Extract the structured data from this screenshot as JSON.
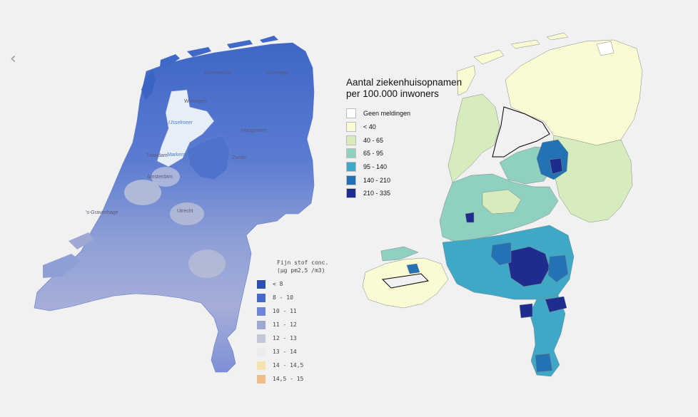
{
  "nav": {
    "back_icon": "chevron-left-icon",
    "back_glyph": "‹"
  },
  "left_map": {
    "place_labels": [
      "Groningen",
      "Leeuwarden",
      "Wieringen",
      "IJsselmeer",
      "Markermeer",
      "Hoogeveen",
      "Zwolle",
      "Zaandam",
      "Amsterdam",
      "'s-Gravenhage",
      "Utrecht"
    ],
    "legend": {
      "title_line1": "Fijn stof conc.",
      "title_line2": "(µg pm2,5 /m3)",
      "items": [
        {
          "label": "< 8",
          "color": "#2c4fb0"
        },
        {
          "label": "8 - 10",
          "color": "#4468cc"
        },
        {
          "label": "10 - 11",
          "color": "#6f86d6"
        },
        {
          "label": "11 - 12",
          "color": "#9ea8d2"
        },
        {
          "label": "12 - 13",
          "color": "#c3c6d4"
        },
        {
          "label": "13 - 14",
          "color": "#ececea"
        },
        {
          "label": "14 - 14,5",
          "color": "#f4e3ae"
        },
        {
          "label": "14,5 - 15",
          "color": "#efbe87"
        }
      ]
    }
  },
  "right_map": {
    "legend": {
      "title_line1": "Aantal ziekenhuisopnamen",
      "title_line2": "per 100.000 inwoners",
      "items": [
        {
          "label": "Geen meldingen",
          "color": "#ffffff"
        },
        {
          "label": "< 40",
          "color": "#fbfbd3"
        },
        {
          "label": "40 - 65",
          "color": "#d7ecbd"
        },
        {
          "label": "65 - 95",
          "color": "#8fd0c1"
        },
        {
          "label": "95 - 140",
          "color": "#3fa8c6"
        },
        {
          "label": "140 - 210",
          "color": "#2272b4"
        },
        {
          "label": "210 - 335",
          "color": "#1f2c8e"
        }
      ]
    }
  }
}
